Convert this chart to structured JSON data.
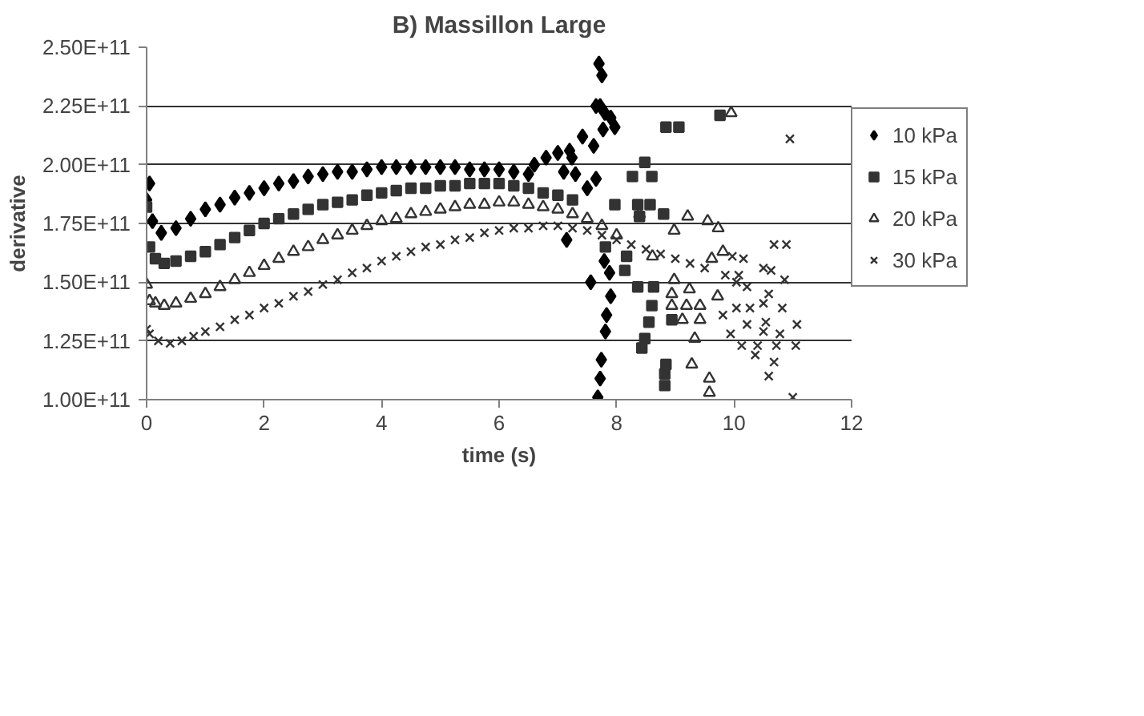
{
  "chart_data": {
    "type": "scatter",
    "title": "B) Massillon Large",
    "xlabel": "time (s)",
    "ylabel": "derivative",
    "xlim": [
      0,
      12
    ],
    "xticks": [
      0,
      2,
      4,
      6,
      8,
      10,
      12
    ],
    "ylim": [
      100000000000.0,
      250000000000.0
    ],
    "yticks": [
      {
        "value": 100000000000.0,
        "label": "1.00E+11"
      },
      {
        "value": 125000000000.0,
        "label": "1.25E+11"
      },
      {
        "value": 150000000000.0,
        "label": "1.50E+11"
      },
      {
        "value": 175000000000.0,
        "label": "1.75E+11"
      },
      {
        "value": 200000000000.0,
        "label": "2.00E+11"
      },
      {
        "value": 225000000000.0,
        "label": "2.25E+11"
      },
      {
        "value": 250000000000.0,
        "label": "2.50E+11"
      }
    ],
    "grid": "y",
    "legend": "right",
    "series": [
      {
        "name": "10 kPa",
        "color": "#000000",
        "marker": "diamond",
        "x": [
          0,
          0.05,
          0.1,
          0.25,
          0.5,
          0.75,
          1,
          1.25,
          1.5,
          1.75,
          2,
          2.25,
          2.5,
          2.75,
          3,
          3.25,
          3.5,
          3.75,
          4,
          4.25,
          4.5,
          4.75,
          5,
          5.25,
          5.5,
          5.75,
          6,
          6.25,
          6.5,
          6.6,
          6.8,
          7.0,
          7.1,
          7.15,
          7.2,
          7.24,
          7.3,
          7.42,
          7.5,
          7.56,
          7.61,
          7.65,
          7.65,
          7.68,
          7.7,
          7.72,
          7.72,
          7.74,
          7.75,
          7.77,
          7.79,
          7.8,
          7.81,
          7.83,
          7.88,
          7.9,
          7.9,
          7.97
        ],
        "values": [
          185000000000.0,
          192000000000.0,
          176000000000.0,
          171000000000.0,
          173000000000.0,
          177000000000.0,
          181000000000.0,
          183000000000.0,
          186000000000.0,
          188000000000.0,
          190000000000.0,
          192000000000.0,
          193000000000.0,
          195000000000.0,
          196000000000.0,
          197000000000.0,
          197000000000.0,
          198000000000.0,
          199000000000.0,
          199000000000.0,
          199000000000.0,
          199000000000.0,
          199000000000.0,
          199000000000.0,
          198000000000.0,
          198000000000.0,
          198000000000.0,
          197000000000.0,
          196000000000.0,
          200000000000.0,
          203000000000.0,
          205000000000.0,
          197000000000.0,
          168000000000.0,
          206000000000.0,
          203000000000.0,
          196000000000.0,
          212000000000.0,
          190000000000.0,
          150000000000.0,
          208000000000.0,
          194000000000.0,
          225000000000.0,
          101000000000.0,
          243000000000.0,
          109000000000.0,
          225000000000.0,
          117000000000.0,
          238000000000.0,
          215000000000.0,
          159000000000.0,
          222000000000.0,
          129000000000.0,
          136000000000.0,
          154000000000.0,
          144000000000.0,
          220000000000.0,
          216000000000.0
        ]
      },
      {
        "name": "15 kPa",
        "color": "#333333",
        "marker": "square",
        "x": [
          0,
          0.05,
          0.15,
          0.3,
          0.5,
          0.75,
          1,
          1.25,
          1.5,
          1.75,
          2,
          2.25,
          2.5,
          2.75,
          3,
          3.25,
          3.5,
          3.75,
          4,
          4.25,
          4.5,
          4.75,
          5,
          5.25,
          5.5,
          5.75,
          6,
          6.25,
          6.5,
          6.75,
          7,
          7.25,
          7.81,
          7.97,
          8.14,
          8.17,
          8.27,
          8.36,
          8.36,
          8.39,
          8.43,
          8.48,
          8.48,
          8.55,
          8.57,
          8.6,
          8.6,
          8.63,
          8.8,
          8.82,
          8.82,
          8.84,
          8.84,
          8.94,
          9.06,
          9.76
        ],
        "values": [
          182000000000.0,
          165000000000.0,
          160000000000.0,
          158000000000.0,
          159000000000.0,
          161000000000.0,
          163000000000.0,
          166000000000.0,
          169000000000.0,
          172000000000.0,
          175000000000.0,
          177000000000.0,
          179000000000.0,
          181000000000.0,
          183000000000.0,
          184000000000.0,
          185000000000.0,
          187000000000.0,
          188000000000.0,
          189000000000.0,
          190000000000.0,
          190000000000.0,
          191000000000.0,
          191000000000.0,
          192000000000.0,
          192000000000.0,
          192000000000.0,
          191000000000.0,
          190000000000.0,
          188000000000.0,
          187000000000.0,
          185000000000.0,
          165000000000.0,
          183000000000.0,
          155000000000.0,
          161000000000.0,
          195000000000.0,
          183000000000.0,
          148000000000.0,
          178000000000.0,
          122000000000.0,
          201000000000.0,
          126000000000.0,
          133000000000.0,
          183000000000.0,
          195000000000.0,
          140000000000.0,
          148000000000.0,
          179000000000.0,
          111000000000.0,
          106000000000.0,
          115000000000.0,
          216000000000.0,
          134000000000.0,
          216000000000.0,
          221000000000.0
        ]
      },
      {
        "name": "20 kPa",
        "color": "#333333",
        "marker": "triangle",
        "x": [
          0,
          0.05,
          0.15,
          0.3,
          0.5,
          0.75,
          1,
          1.25,
          1.5,
          1.75,
          2,
          2.25,
          2.5,
          2.75,
          3,
          3.25,
          3.5,
          3.75,
          4,
          4.25,
          4.5,
          4.75,
          5,
          5.25,
          5.5,
          5.75,
          6,
          6.25,
          6.5,
          6.75,
          7,
          7.25,
          7.5,
          7.75,
          8,
          8.39,
          8.61,
          8.94,
          8.94,
          8.98,
          8.98,
          9.12,
          9.19,
          9.21,
          9.24,
          9.28,
          9.33,
          9.42,
          9.42,
          9.55,
          9.58,
          9.58,
          9.62,
          9.72,
          9.73,
          9.81,
          9.95
        ],
        "values": [
          149000000000.0,
          142000000000.0,
          141000000000.0,
          140000000000.0,
          141000000000.0,
          143000000000.0,
          145000000000.0,
          148000000000.0,
          151000000000.0,
          154000000000.0,
          157000000000.0,
          160000000000.0,
          163000000000.0,
          165000000000.0,
          168000000000.0,
          170000000000.0,
          172000000000.0,
          174000000000.0,
          176000000000.0,
          177000000000.0,
          179000000000.0,
          180000000000.0,
          181000000000.0,
          182000000000.0,
          183000000000.0,
          183000000000.0,
          184000000000.0,
          184000000000.0,
          183000000000.0,
          182000000000.0,
          181000000000.0,
          179000000000.0,
          177000000000.0,
          174000000000.0,
          170000000000.0,
          179000000000.0,
          161000000000.0,
          145000000000.0,
          140000000000.0,
          172000000000.0,
          151000000000.0,
          134000000000.0,
          140000000000.0,
          178000000000.0,
          147000000000.0,
          115000000000.0,
          126000000000.0,
          140000000000.0,
          134000000000.0,
          176000000000.0,
          109000000000.0,
          103000000000.0,
          160000000000.0,
          144000000000.0,
          173000000000.0,
          163000000000.0,
          222000000000.0
        ]
      },
      {
        "name": "30 kPa",
        "color": "#333333",
        "marker": "cross",
        "x": [
          0,
          0.05,
          0.2,
          0.4,
          0.6,
          0.8,
          1,
          1.25,
          1.5,
          1.75,
          2,
          2.25,
          2.5,
          2.75,
          3,
          3.25,
          3.5,
          3.75,
          4,
          4.25,
          4.5,
          4.75,
          5,
          5.25,
          5.5,
          5.75,
          6,
          6.25,
          6.5,
          6.75,
          7,
          7.25,
          7.5,
          7.75,
          8,
          8.25,
          8.5,
          8.75,
          9,
          9.25,
          9.5,
          9.81,
          9.85,
          9.94,
          9.97,
          10.04,
          10.04,
          10.08,
          10.13,
          10.16,
          10.22,
          10.22,
          10.27,
          10.36,
          10.4,
          10.5,
          10.5,
          10.5,
          10.54,
          10.59,
          10.59,
          10.63,
          10.68,
          10.68,
          10.72,
          10.78,
          10.82,
          10.86,
          10.89,
          10.95,
          11.0,
          11.05,
          11.07
        ],
        "values": [
          130000000000.0,
          128000000000.0,
          125000000000.0,
          124000000000.0,
          125000000000.0,
          127000000000.0,
          129000000000.0,
          131000000000.0,
          134000000000.0,
          136000000000.0,
          139000000000.0,
          141000000000.0,
          144000000000.0,
          146000000000.0,
          149000000000.0,
          151000000000.0,
          154000000000.0,
          156000000000.0,
          159000000000.0,
          161000000000.0,
          163000000000.0,
          165000000000.0,
          166000000000.0,
          168000000000.0,
          169000000000.0,
          171000000000.0,
          172000000000.0,
          173000000000.0,
          173000000000.0,
          174000000000.0,
          174000000000.0,
          173000000000.0,
          172000000000.0,
          170000000000.0,
          168000000000.0,
          166000000000.0,
          164000000000.0,
          162000000000.0,
          160000000000.0,
          158000000000.0,
          156000000000.0,
          136000000000.0,
          153000000000.0,
          128000000000.0,
          161000000000.0,
          150000000000.0,
          139000000000.0,
          153000000000.0,
          123000000000.0,
          160000000000.0,
          148000000000.0,
          132000000000.0,
          139000000000.0,
          119000000000.0,
          123000000000.0,
          156000000000.0,
          141000000000.0,
          129000000000.0,
          133000000000.0,
          145000000000.0,
          110000000000.0,
          155000000000.0,
          166000000000.0,
          116000000000.0,
          123000000000.0,
          128000000000.0,
          139000000000.0,
          151000000000.0,
          166000000000.0,
          211000000000.0,
          101000000000.0,
          123000000000.0,
          132000000000.0
        ]
      }
    ]
  }
}
